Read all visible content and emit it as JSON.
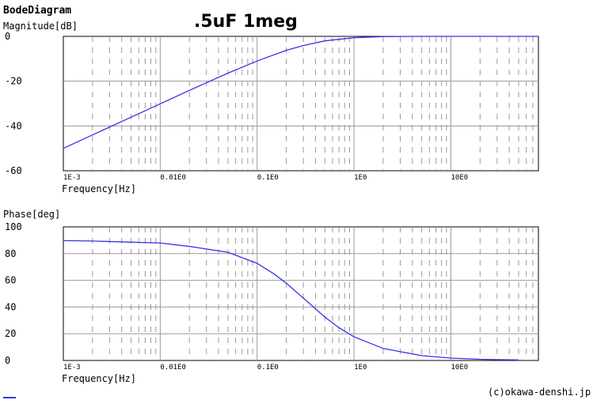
{
  "app_title": "BodeDiagram",
  "annotation": ".5uF 1meg",
  "credit": "(c)okawa-denshi.jp",
  "colors": {
    "curve": "#3333ee",
    "grid": "#9a9a9a",
    "marker": "#3333ee"
  },
  "chart_data": [
    {
      "type": "line",
      "id": "magnitude",
      "ylabel": "Magnitude[dB]",
      "xlabel": "Frequency[Hz]",
      "x_scale": "log",
      "xlim": [
        0.001,
        80
      ],
      "ylim": [
        -60,
        0
      ],
      "y_ticks": [
        0,
        -20,
        -40,
        -60
      ],
      "y_tick_labels": [
        "0",
        "-20",
        "-40",
        "-60"
      ],
      "x_decades": [
        0.001,
        0.01,
        0.1,
        1,
        10
      ],
      "x_tick_labels": [
        "1E-3",
        "0.01E0",
        "0.1E0",
        "1E0",
        "10E0"
      ],
      "grid": true,
      "series": [
        {
          "x": [
            0.001,
            0.002,
            0.005,
            0.01,
            0.02,
            0.05,
            0.1,
            0.2,
            0.3,
            0.5,
            1,
            2,
            5,
            10,
            20,
            50,
            80
          ],
          "y": [
            -50.0,
            -44.0,
            -36.1,
            -30.1,
            -24.1,
            -16.4,
            -11.0,
            -6.2,
            -4.1,
            -2.0,
            -0.6,
            -0.1,
            0,
            0,
            0,
            0,
            0
          ]
        }
      ]
    },
    {
      "type": "line",
      "id": "phase",
      "ylabel": "Phase[deg]",
      "xlabel": "Frequency[Hz]",
      "x_scale": "log",
      "xlim": [
        0.001,
        80
      ],
      "ylim": [
        0,
        100
      ],
      "y_ticks": [
        100,
        80,
        60,
        40,
        20,
        0
      ],
      "y_tick_labels": [
        "100",
        "80",
        "60",
        "40",
        "20",
        "0"
      ],
      "x_decades": [
        0.001,
        0.01,
        0.1,
        1,
        10
      ],
      "x_tick_labels": [
        "1E-3",
        "0.01E0",
        "0.1E0",
        "1E0",
        "10E0"
      ],
      "grid": true,
      "series": [
        {
          "x": [
            0.001,
            0.002,
            0.005,
            0.01,
            0.02,
            0.05,
            0.1,
            0.15,
            0.2,
            0.3,
            0.5,
            0.7,
            1,
            2,
            5,
            10,
            20,
            50
          ],
          "y": [
            89.7,
            89.4,
            88.6,
            87.9,
            85.4,
            81.0,
            72.7,
            64.7,
            57.8,
            46.7,
            32.5,
            24.5,
            17.7,
            9.0,
            3.6,
            1.8,
            0.9,
            0.4
          ]
        }
      ]
    }
  ]
}
